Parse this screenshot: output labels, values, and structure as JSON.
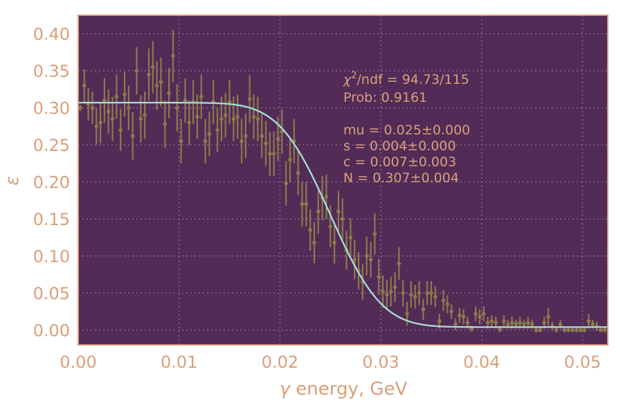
{
  "chart_data": {
    "type": "scatter",
    "xlabel_symbol": "γ",
    "xlabel_text": " energy, GeV",
    "ylabel": "ε",
    "xlim": [
      0.0,
      0.0525
    ],
    "ylim": [
      -0.02,
      0.425
    ],
    "xticks": [
      0.0,
      0.01,
      0.02,
      0.03,
      0.04,
      0.05
    ],
    "xtick_labels": [
      "0.00",
      "0.01",
      "0.02",
      "0.03",
      "0.04",
      "0.05"
    ],
    "yticks": [
      0.0,
      0.05,
      0.1,
      0.15,
      0.2,
      0.25,
      0.3,
      0.35,
      0.4
    ],
    "ytick_labels": [
      "0.00",
      "0.05",
      "0.10",
      "0.15",
      "0.20",
      "0.25",
      "0.30",
      "0.35",
      "0.40"
    ],
    "grid": true,
    "colors": {
      "background": "#522b57",
      "frame": "#d9a07a",
      "text": "#d9a07a",
      "points": "#8c7a4b",
      "fit": "#a6dbcf",
      "grid": "#8a7aa0"
    },
    "annotation": {
      "chi_symbol": "χ",
      "chi_sup": "2",
      "chi_rest": "/ndf = 94.73/115",
      "prob": "Prob: 0.9161",
      "params": [
        "mu = 0.025±0.000",
        "s = 0.004±0.000",
        "c = 0.007±0.003",
        "N = 0.307±0.004"
      ]
    },
    "fit": {
      "mu": 0.025,
      "s": 0.004,
      "c": 0.007,
      "N": 0.307
    },
    "series": [
      {
        "x": [
          0.0002,
          0.0006,
          0.001,
          0.0014,
          0.0018,
          0.0022,
          0.0026,
          0.003,
          0.0034,
          0.0038,
          0.0042,
          0.0046,
          0.005,
          0.0054,
          0.0058,
          0.0062,
          0.0066,
          0.007,
          0.0074,
          0.0078,
          0.0082,
          0.0086,
          0.009,
          0.0094,
          0.0098,
          0.0102,
          0.0106,
          0.011,
          0.0114,
          0.0118,
          0.0122,
          0.0126,
          0.013,
          0.0134,
          0.0138,
          0.0142,
          0.0146,
          0.015,
          0.0154,
          0.0158,
          0.0162,
          0.0166,
          0.017,
          0.0174,
          0.0178,
          0.0182,
          0.0186,
          0.019,
          0.0194,
          0.0198,
          0.0202,
          0.0206,
          0.021,
          0.0214,
          0.0218,
          0.0222,
          0.0226,
          0.023,
          0.0234,
          0.0238,
          0.0242,
          0.0246,
          0.025,
          0.0254,
          0.0258,
          0.0262,
          0.0266,
          0.027,
          0.0274,
          0.0278,
          0.0282,
          0.0286,
          0.029,
          0.0294,
          0.0298,
          0.0302,
          0.0306,
          0.031,
          0.0314,
          0.0318,
          0.0322,
          0.0326,
          0.033,
          0.0334,
          0.0338,
          0.0342,
          0.0346,
          0.035,
          0.0354,
          0.0358,
          0.0362,
          0.0366,
          0.037,
          0.0374,
          0.0378,
          0.0382,
          0.0386,
          0.039,
          0.0394,
          0.0398,
          0.0402,
          0.0406,
          0.041,
          0.0414,
          0.0418,
          0.0422,
          0.0426,
          0.043,
          0.0434,
          0.0438,
          0.0442,
          0.0446,
          0.045,
          0.0454,
          0.0458,
          0.0462,
          0.0466,
          0.047,
          0.0474,
          0.0478,
          0.0482,
          0.0486,
          0.049,
          0.0494,
          0.0498,
          0.0502,
          0.0506,
          0.051,
          0.0514,
          0.0518,
          0.0522
        ],
        "y": [
          0.3,
          0.33,
          0.305,
          0.3,
          0.275,
          0.28,
          0.31,
          0.295,
          0.285,
          0.315,
          0.27,
          0.318,
          0.3,
          0.262,
          0.35,
          0.285,
          0.29,
          0.345,
          0.355,
          0.33,
          0.335,
          0.278,
          0.32,
          0.37,
          0.3,
          0.255,
          0.31,
          0.28,
          0.308,
          0.288,
          0.315,
          0.255,
          0.265,
          0.308,
          0.27,
          0.285,
          0.29,
          0.308,
          0.285,
          0.288,
          0.255,
          0.262,
          0.312,
          0.288,
          0.285,
          0.262,
          0.252,
          0.238,
          0.238,
          0.258,
          0.268,
          0.198,
          0.23,
          0.255,
          0.212,
          0.17,
          0.17,
          0.135,
          0.118,
          0.16,
          0.178,
          0.18,
          0.14,
          0.118,
          0.16,
          0.15,
          0.108,
          0.125,
          0.095,
          0.08,
          0.065,
          0.1,
          0.095,
          0.13,
          0.072,
          0.052,
          0.048,
          0.052,
          0.058,
          0.09,
          0.05,
          0.022,
          0.048,
          0.045,
          0.05,
          0.028,
          0.05,
          0.05,
          0.045,
          0.012,
          0.04,
          0.035,
          0.025,
          0.008,
          0.02,
          0.018,
          0.01,
          0.002,
          0.022,
          0.018,
          0.022,
          0.01,
          0.012,
          0.01,
          0.001,
          0.012,
          0.008,
          0.01,
          0.008,
          0.01,
          0.008,
          0.01,
          0.008,
          0.0,
          0.0,
          0.01,
          0.018,
          0.005,
          0.0,
          0.008,
          0.0,
          0.0,
          0.0,
          0.0,
          0.0,
          0.0,
          0.012,
          0.008,
          0.005,
          0.0,
          0.0
        ],
        "yerr": [
          0.004,
          0.022,
          0.022,
          0.022,
          0.025,
          0.028,
          0.03,
          0.03,
          0.03,
          0.03,
          0.028,
          0.03,
          0.03,
          0.032,
          0.032,
          0.032,
          0.032,
          0.035,
          0.035,
          0.033,
          0.033,
          0.032,
          0.034,
          0.035,
          0.032,
          0.03,
          0.03,
          0.03,
          0.03,
          0.03,
          0.03,
          0.03,
          0.03,
          0.03,
          0.03,
          0.03,
          0.03,
          0.03,
          0.03,
          0.03,
          0.03,
          0.03,
          0.032,
          0.03,
          0.03,
          0.03,
          0.03,
          0.03,
          0.03,
          0.03,
          0.03,
          0.03,
          0.03,
          0.03,
          0.03,
          0.03,
          0.03,
          0.028,
          0.028,
          0.03,
          0.03,
          0.03,
          0.028,
          0.028,
          0.028,
          0.028,
          0.026,
          0.026,
          0.026,
          0.025,
          0.024,
          0.026,
          0.024,
          0.028,
          0.024,
          0.022,
          0.02,
          0.02,
          0.02,
          0.022,
          0.018,
          0.016,
          0.018,
          0.016,
          0.016,
          0.014,
          0.016,
          0.016,
          0.014,
          0.01,
          0.014,
          0.012,
          0.01,
          0.008,
          0.01,
          0.01,
          0.008,
          0.004,
          0.01,
          0.01,
          0.01,
          0.008,
          0.008,
          0.008,
          0.004,
          0.008,
          0.006,
          0.008,
          0.006,
          0.008,
          0.006,
          0.008,
          0.006,
          0.003,
          0.003,
          0.008,
          0.012,
          0.006,
          0.003,
          0.006,
          0.003,
          0.003,
          0.003,
          0.003,
          0.003,
          0.003,
          0.01,
          0.006,
          0.006,
          0.003,
          0.003
        ]
      }
    ]
  }
}
